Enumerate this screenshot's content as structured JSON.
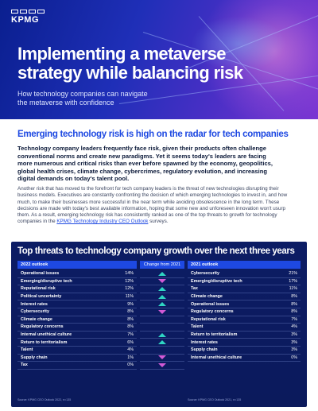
{
  "brand": {
    "logo_text": "KPMG"
  },
  "hero": {
    "title_line1": "Implementing a metaverse",
    "title_line2": "strategy while balancing risk",
    "subtitle_line1": "How technology companies can navigate",
    "subtitle_line2": "the metaverse with confidence"
  },
  "section": {
    "title": "Emerging technology risk is high on the radar for tech companies",
    "lead": [
      "Technology company leaders frequently face risk, given their products often challenge",
      "conventional norms and create new paradigms. Yet it seems today's leaders are facing",
      "more numerous and critical risks than ever before spawned by the economy, geopolitics,",
      "global health crises, climate change, cybercrimes, regulatory evolution, and increasing",
      "digital demands on today's talent pool."
    ],
    "body": [
      "Another risk that has moved to the forefront for tech company leaders is the threat of new technologies disrupting their",
      "business models. Executives are constantly confronting the decision of which emerging technologies to invest in, and how",
      "much, to make their businesses more successful in the near term while avoiding obsolescence in the long term. These",
      "decisions are made with today's best available information, hoping that some new and unforeseen innovation won't usurp",
      "them. As a result, emerging technology risk has consistently ranked as one of the top threats to growth for technology"
    ],
    "body_last_prefix": "companies in the ",
    "body_link": "KPMG Technology Industry CEO Outlook",
    "body_last_suffix": " surveys."
  },
  "table": {
    "title": "Top threats to technology company growth over the next three years",
    "col_2022": "2022 outlook",
    "col_change": "Change from 2021",
    "col_2021": "2021 outlook",
    "rows_2022": [
      {
        "label": "Operational issues",
        "value": "14%",
        "change": "up"
      },
      {
        "label": "Emerging/disruptive tech",
        "value": "12%",
        "change": "down"
      },
      {
        "label": "Reputational risk",
        "value": "12%",
        "change": "up"
      },
      {
        "label": "Political uncertainty",
        "value": "11%",
        "change": "up"
      },
      {
        "label": "Interest rates",
        "value": "9%",
        "change": "up"
      },
      {
        "label": "Cybersecurity",
        "value": "8%",
        "change": "down"
      },
      {
        "label": "Climate change",
        "value": "8%",
        "change": ""
      },
      {
        "label": "Regulatory concerns",
        "value": "8%",
        "change": ""
      },
      {
        "label": "Internal unethical culture",
        "value": "7%",
        "change": "up"
      },
      {
        "label": "Return to territorialism",
        "value": "6%",
        "change": "up"
      },
      {
        "label": "Talent",
        "value": "4%",
        "change": ""
      },
      {
        "label": "Supply chain",
        "value": "1%",
        "change": "down"
      },
      {
        "label": "Tax",
        "value": "0%",
        "change": "down"
      }
    ],
    "rows_2021": [
      {
        "label": "Cybersecurity",
        "value": "21%"
      },
      {
        "label": "Emerging/disruptive tech",
        "value": "17%"
      },
      {
        "label": "Tax",
        "value": "11%"
      },
      {
        "label": "Climate change",
        "value": "8%"
      },
      {
        "label": "Operational issues",
        "value": "8%"
      },
      {
        "label": "Regulatory concerns",
        "value": "8%"
      },
      {
        "label": "Reputational risk",
        "value": "7%"
      },
      {
        "label": "Talent",
        "value": "4%"
      },
      {
        "label": "Return to territorialism",
        "value": "3%"
      },
      {
        "label": "Interest rates",
        "value": "3%"
      },
      {
        "label": "Supply chain",
        "value": "3%"
      },
      {
        "label": "Internal unethical culture",
        "value": "0%"
      }
    ],
    "source_2022": "Source: KPMG CEO Outlook 2022, n=135",
    "source_2021": "Source: KPMG CEO Outlook 2021, n=135"
  },
  "colors": {
    "accent": "#1e49e2",
    "purple": "#7213ea",
    "panel": "#0c1c64",
    "up": "#2fd6c3",
    "down": "#d35ad6"
  }
}
